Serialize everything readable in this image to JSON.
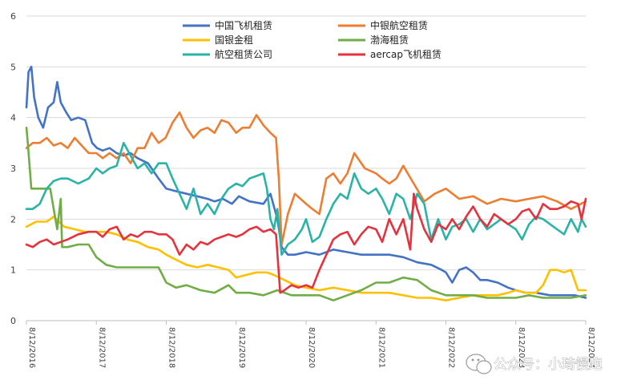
{
  "chart_data": {
    "type": "line",
    "title": "",
    "xlabel": "",
    "ylabel": "",
    "ylim": [
      0,
      6
    ],
    "yticks": [
      "0",
      "1",
      "2",
      "3",
      "4",
      "5",
      "6"
    ],
    "grid": true,
    "legend_position": "top",
    "x_tick_labels": [
      "8/12/2016",
      "8/12/2017",
      "8/12/2018",
      "8/12/2019",
      "8/12/2020",
      "8/12/2021",
      "8/12/2022",
      "8/12/2023",
      "8/12/2024"
    ],
    "x_years": [
      2016.61,
      2017.61,
      2018.61,
      2019.61,
      2020.61,
      2021.61,
      2022.61,
      2023.61,
      2024.61
    ],
    "series": [
      {
        "name": "中国飞机租赁",
        "color": "#4472C4",
        "x": [
          2016.61,
          2016.64,
          2016.68,
          2016.72,
          2016.78,
          2016.85,
          2016.92,
          2017.0,
          2017.05,
          2017.1,
          2017.18,
          2017.25,
          2017.35,
          2017.45,
          2017.55,
          2017.62,
          2017.7,
          2017.8,
          2017.9,
          2018.0,
          2018.1,
          2018.2,
          2018.35,
          2018.5,
          2018.61,
          2018.75,
          2018.9,
          2019.05,
          2019.2,
          2019.3,
          2019.42,
          2019.55,
          2019.65,
          2019.8,
          2020.0,
          2020.1,
          2020.2,
          2020.26,
          2020.35,
          2020.45,
          2020.61,
          2020.8,
          2021.0,
          2021.2,
          2021.4,
          2021.61,
          2021.8,
          2022.0,
          2022.2,
          2022.4,
          2022.55,
          2022.61,
          2022.7,
          2022.8,
          2022.9,
          2023.0,
          2023.1,
          2023.2,
          2023.35,
          2023.5,
          2023.61,
          2023.75,
          2023.9,
          2024.1,
          2024.3,
          2024.45,
          2024.61
        ],
        "values": [
          4.2,
          4.9,
          5.0,
          4.4,
          4.0,
          3.8,
          4.2,
          4.3,
          4.7,
          4.3,
          4.1,
          3.95,
          4.0,
          3.95,
          3.5,
          3.4,
          3.35,
          3.4,
          3.3,
          3.25,
          3.3,
          3.2,
          3.1,
          2.8,
          2.6,
          2.55,
          2.5,
          2.45,
          2.4,
          2.35,
          2.4,
          2.3,
          2.45,
          2.35,
          2.3,
          2.5,
          2.0,
          1.45,
          1.3,
          1.3,
          1.35,
          1.3,
          1.4,
          1.35,
          1.3,
          1.3,
          1.3,
          1.25,
          1.15,
          1.1,
          1.0,
          0.95,
          0.75,
          1.0,
          1.05,
          0.95,
          0.8,
          0.8,
          0.75,
          0.65,
          0.6,
          0.55,
          0.55,
          0.5,
          0.5,
          0.5,
          0.45
        ]
      },
      {
        "name": "中银航空租赁",
        "color": "#ED7D31",
        "x": [
          2016.61,
          2016.7,
          2016.8,
          2016.9,
          2017.0,
          2017.1,
          2017.2,
          2017.3,
          2017.4,
          2017.5,
          2017.61,
          2017.7,
          2017.8,
          2017.9,
          2018.0,
          2018.1,
          2018.2,
          2018.3,
          2018.4,
          2018.5,
          2018.6,
          2018.7,
          2018.8,
          2018.9,
          2019.0,
          2019.1,
          2019.2,
          2019.3,
          2019.4,
          2019.5,
          2019.61,
          2019.7,
          2019.8,
          2019.9,
          2020.0,
          2020.1,
          2020.18,
          2020.22,
          2020.26,
          2020.35,
          2020.45,
          2020.61,
          2020.7,
          2020.8,
          2020.9,
          2021.0,
          2021.1,
          2021.2,
          2021.3,
          2021.45,
          2021.61,
          2021.7,
          2021.8,
          2021.9,
          2022.0,
          2022.15,
          2022.3,
          2022.45,
          2022.61,
          2022.8,
          2023.0,
          2023.2,
          2023.4,
          2023.61,
          2023.8,
          2024.0,
          2024.2,
          2024.4,
          2024.61
        ],
        "values": [
          3.4,
          3.5,
          3.5,
          3.6,
          3.45,
          3.5,
          3.4,
          3.6,
          3.45,
          3.3,
          3.3,
          3.2,
          3.3,
          3.2,
          3.3,
          3.1,
          3.4,
          3.4,
          3.7,
          3.5,
          3.6,
          3.9,
          4.1,
          3.8,
          3.6,
          3.75,
          3.8,
          3.7,
          3.95,
          3.9,
          3.7,
          3.8,
          3.8,
          4.05,
          3.85,
          3.7,
          3.6,
          2.8,
          1.5,
          2.1,
          2.5,
          2.3,
          2.2,
          2.1,
          2.8,
          2.9,
          2.7,
          2.9,
          3.3,
          3.0,
          2.9,
          2.8,
          2.7,
          2.8,
          3.05,
          2.7,
          2.35,
          2.5,
          2.6,
          2.4,
          2.45,
          2.3,
          2.4,
          2.35,
          2.4,
          2.45,
          2.35,
          2.2,
          2.35
        ]
      },
      {
        "name": "国银金租",
        "color": "#FFC000",
        "x": [
          2016.61,
          2016.75,
          2016.9,
          2017.0,
          2017.15,
          2017.3,
          2017.45,
          2017.61,
          2017.75,
          2017.9,
          2018.05,
          2018.2,
          2018.35,
          2018.5,
          2018.61,
          2018.75,
          2018.9,
          2019.05,
          2019.2,
          2019.35,
          2019.5,
          2019.61,
          2019.75,
          2019.9,
          2020.05,
          2020.15,
          2020.3,
          2020.45,
          2020.61,
          2020.8,
          2021.0,
          2021.2,
          2021.4,
          2021.61,
          2021.8,
          2022.0,
          2022.2,
          2022.4,
          2022.61,
          2022.8,
          2023.0,
          2023.2,
          2023.35,
          2023.5,
          2023.61,
          2023.75,
          2023.9,
          2024.0,
          2024.1,
          2024.2,
          2024.3,
          2024.4,
          2024.5,
          2024.61
        ],
        "values": [
          1.85,
          1.95,
          1.95,
          2.05,
          1.85,
          1.8,
          1.75,
          1.75,
          1.75,
          1.7,
          1.6,
          1.55,
          1.45,
          1.4,
          1.3,
          1.2,
          1.1,
          1.05,
          1.1,
          1.05,
          1.0,
          0.85,
          0.9,
          0.95,
          0.95,
          0.9,
          0.8,
          0.7,
          0.65,
          0.6,
          0.65,
          0.6,
          0.55,
          0.55,
          0.55,
          0.5,
          0.45,
          0.45,
          0.4,
          0.45,
          0.5,
          0.5,
          0.5,
          0.55,
          0.6,
          0.55,
          0.55,
          0.7,
          1.0,
          1.0,
          0.95,
          1.0,
          0.6,
          0.6
        ]
      },
      {
        "name": "渤海租赁",
        "color": "#70AD47",
        "x": [
          2016.61,
          2016.63,
          2016.68,
          2016.8,
          2016.95,
          2017.0,
          2017.05,
          2017.1,
          2017.12,
          2017.2,
          2017.35,
          2017.5,
          2017.61,
          2017.75,
          2017.9,
          2018.0,
          2018.2,
          2018.4,
          2018.5,
          2018.61,
          2018.75,
          2018.9,
          2019.1,
          2019.3,
          2019.5,
          2019.61,
          2019.8,
          2020.0,
          2020.2,
          2020.4,
          2020.61,
          2020.8,
          2021.0,
          2021.2,
          2021.4,
          2021.61,
          2021.8,
          2022.0,
          2022.2,
          2022.4,
          2022.61,
          2022.8,
          2023.0,
          2023.2,
          2023.4,
          2023.61,
          2023.8,
          2024.0,
          2024.2,
          2024.4,
          2024.61
        ],
        "values": [
          3.8,
          3.5,
          2.6,
          2.6,
          2.6,
          2.2,
          1.8,
          2.4,
          1.45,
          1.45,
          1.5,
          1.5,
          1.25,
          1.1,
          1.05,
          1.05,
          1.05,
          1.05,
          1.05,
          0.75,
          0.65,
          0.7,
          0.6,
          0.55,
          0.7,
          0.55,
          0.55,
          0.5,
          0.6,
          0.5,
          0.5,
          0.5,
          0.4,
          0.5,
          0.6,
          0.75,
          0.75,
          0.85,
          0.8,
          0.6,
          0.5,
          0.5,
          0.5,
          0.45,
          0.45,
          0.45,
          0.5,
          0.45,
          0.45,
          0.45,
          0.5
        ]
      },
      {
        "name": "航空租赁公司",
        "color": "#2AB3A6",
        "x": [
          2016.61,
          2016.7,
          2016.8,
          2016.9,
          2017.0,
          2017.1,
          2017.2,
          2017.35,
          2017.5,
          2017.61,
          2017.7,
          2017.8,
          2017.9,
          2018.0,
          2018.1,
          2018.2,
          2018.3,
          2018.4,
          2018.5,
          2018.61,
          2018.7,
          2018.8,
          2018.9,
          2019.0,
          2019.1,
          2019.2,
          2019.3,
          2019.4,
          2019.5,
          2019.61,
          2019.7,
          2019.8,
          2019.9,
          2020.0,
          2020.05,
          2020.1,
          2020.15,
          2020.2,
          2020.26,
          2020.35,
          2020.45,
          2020.55,
          2020.61,
          2020.7,
          2020.8,
          2020.9,
          2021.0,
          2021.1,
          2021.2,
          2021.3,
          2021.4,
          2021.5,
          2021.61,
          2021.7,
          2021.8,
          2021.9,
          2022.0,
          2022.1,
          2022.2,
          2022.3,
          2022.4,
          2022.5,
          2022.61,
          2022.7,
          2022.8,
          2022.9,
          2023.0,
          2023.1,
          2023.2,
          2023.3,
          2023.4,
          2023.5,
          2023.61,
          2023.7,
          2023.8,
          2023.9,
          2024.0,
          2024.1,
          2024.2,
          2024.3,
          2024.4,
          2024.5,
          2024.55,
          2024.61
        ],
        "values": [
          2.2,
          2.2,
          2.3,
          2.6,
          2.75,
          2.8,
          2.8,
          2.7,
          2.8,
          3.0,
          2.9,
          3.0,
          3.05,
          3.5,
          3.25,
          3.0,
          3.1,
          2.9,
          3.1,
          3.1,
          2.8,
          2.5,
          2.2,
          2.6,
          2.1,
          2.3,
          2.1,
          2.4,
          2.6,
          2.7,
          2.65,
          2.8,
          2.85,
          2.9,
          2.6,
          2.0,
          1.8,
          2.2,
          1.3,
          1.5,
          1.6,
          1.8,
          2.0,
          1.55,
          1.65,
          2.0,
          2.3,
          2.5,
          2.4,
          2.9,
          2.6,
          2.5,
          2.6,
          2.4,
          2.1,
          2.5,
          2.4,
          2.0,
          2.5,
          2.3,
          1.6,
          2.0,
          1.6,
          1.85,
          1.9,
          2.0,
          1.75,
          2.0,
          1.8,
          1.9,
          2.0,
          1.9,
          1.8,
          1.6,
          1.9,
          2.05,
          2.0,
          1.9,
          1.8,
          1.7,
          2.0,
          1.75,
          2.0,
          1.85
        ]
      },
      {
        "name": "aercap飞机租赁",
        "color": "#E5323F",
        "x": [
          2016.61,
          2016.7,
          2016.8,
          2016.9,
          2017.0,
          2017.1,
          2017.2,
          2017.35,
          2017.5,
          2017.61,
          2017.7,
          2017.8,
          2017.9,
          2018.0,
          2018.1,
          2018.2,
          2018.3,
          2018.4,
          2018.5,
          2018.61,
          2018.7,
          2018.8,
          2018.9,
          2019.0,
          2019.1,
          2019.2,
          2019.3,
          2019.4,
          2019.5,
          2019.61,
          2019.7,
          2019.8,
          2019.9,
          2020.0,
          2020.1,
          2020.18,
          2020.24,
          2020.3,
          2020.4,
          2020.5,
          2020.61,
          2020.7,
          2020.8,
          2020.9,
          2021.0,
          2021.1,
          2021.2,
          2021.3,
          2021.4,
          2021.5,
          2021.61,
          2021.7,
          2021.8,
          2021.9,
          2022.0,
          2022.1,
          2022.15,
          2022.2,
          2022.3,
          2022.4,
          2022.5,
          2022.61,
          2022.7,
          2022.8,
          2022.9,
          2023.0,
          2023.1,
          2023.2,
          2023.3,
          2023.4,
          2023.5,
          2023.61,
          2023.7,
          2023.8,
          2023.9,
          2024.0,
          2024.1,
          2024.2,
          2024.3,
          2024.4,
          2024.5,
          2024.55,
          2024.61
        ],
        "values": [
          1.5,
          1.45,
          1.55,
          1.6,
          1.5,
          1.55,
          1.6,
          1.7,
          1.75,
          1.75,
          1.65,
          1.8,
          1.85,
          1.6,
          1.7,
          1.65,
          1.75,
          1.75,
          1.7,
          1.7,
          1.6,
          1.3,
          1.5,
          1.4,
          1.55,
          1.5,
          1.6,
          1.65,
          1.7,
          1.65,
          1.7,
          1.8,
          1.85,
          1.75,
          1.8,
          1.7,
          0.55,
          0.6,
          0.7,
          0.65,
          0.7,
          0.65,
          1.0,
          1.3,
          1.6,
          1.7,
          1.75,
          1.5,
          1.7,
          1.85,
          1.8,
          1.55,
          2.0,
          1.7,
          2.0,
          1.4,
          2.5,
          2.2,
          1.8,
          1.55,
          1.9,
          1.8,
          2.0,
          1.8,
          2.05,
          2.25,
          2.0,
          1.85,
          2.1,
          2.0,
          1.9,
          2.0,
          2.15,
          2.2,
          2.0,
          2.3,
          2.2,
          2.2,
          2.25,
          2.35,
          2.3,
          2.0,
          2.4
        ]
      }
    ],
    "watermark": {
      "text": "公众号：小琦慢跑",
      "icon_name": "wechat-bubble-icon"
    }
  }
}
